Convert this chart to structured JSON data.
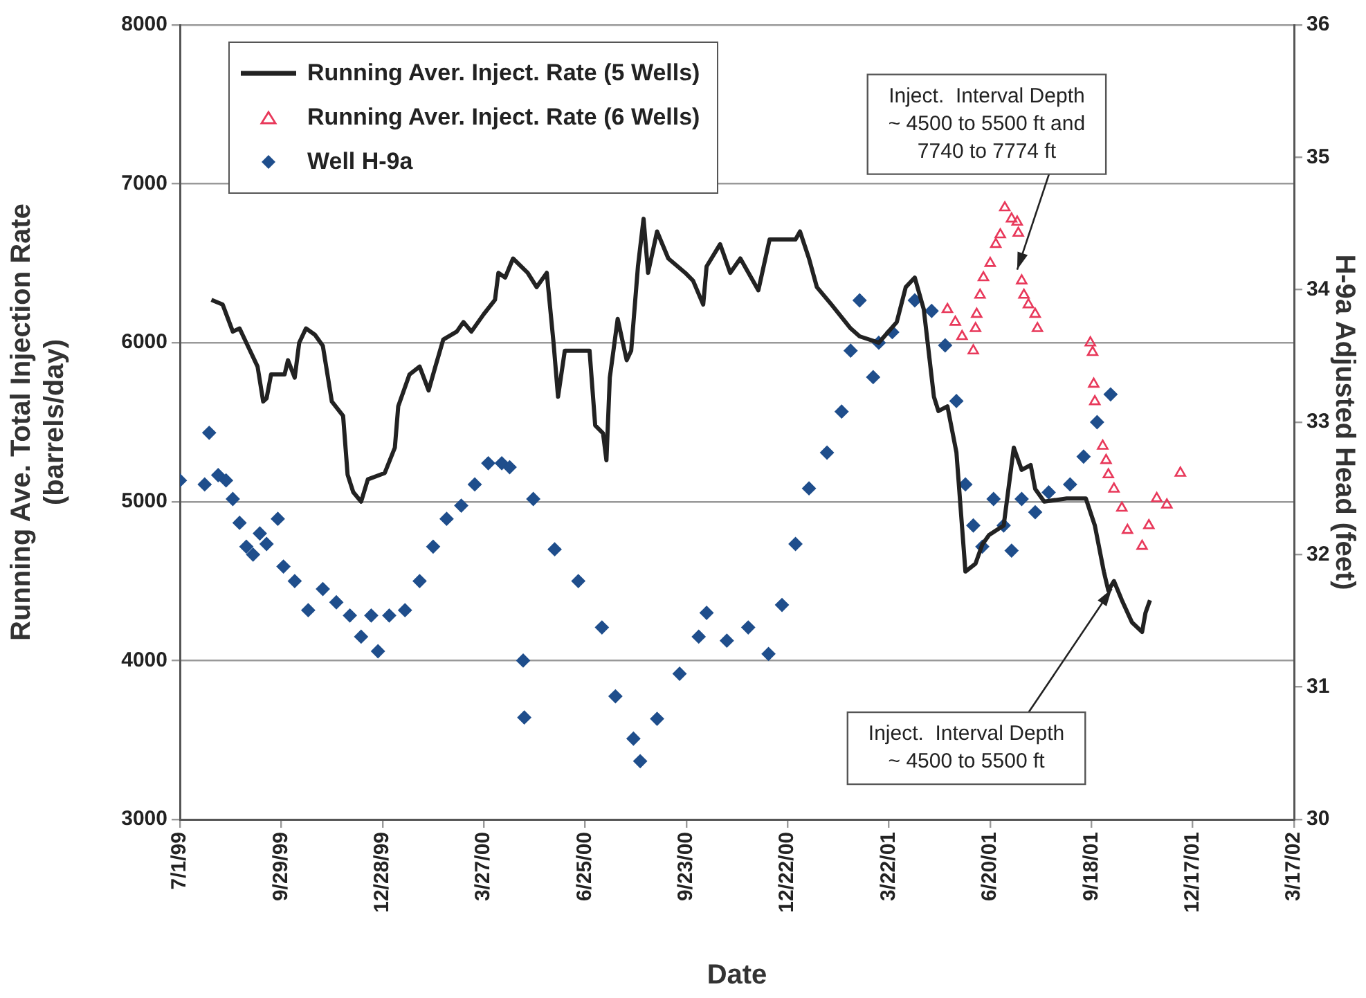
{
  "chart_data": {
    "type": "line",
    "xlabel": "Date",
    "ylabel": "Running Ave. Total Injection Rate\n(barrels/day)",
    "y2label": "H-9a Adjusted Head (feet)",
    "xlim": [
      "1999-07-01",
      "2002-03-17"
    ],
    "xticks": [
      {
        "value": "1999-07-01",
        "label": "7/1/99"
      },
      {
        "value": "1999-09-29",
        "label": "9/29/99"
      },
      {
        "value": "1999-12-28",
        "label": "12/28/99"
      },
      {
        "value": "2000-03-27",
        "label": "3/27/00"
      },
      {
        "value": "2000-06-25",
        "label": "6/25/00"
      },
      {
        "value": "2000-09-23",
        "label": "9/23/00"
      },
      {
        "value": "2000-12-22",
        "label": "12/22/00"
      },
      {
        "value": "2001-03-22",
        "label": "3/22/01"
      },
      {
        "value": "2001-06-20",
        "label": "6/20/01"
      },
      {
        "value": "2001-09-18",
        "label": "9/18/01"
      },
      {
        "value": "2001-12-17",
        "label": "12/17/01"
      },
      {
        "value": "2002-03-17",
        "label": "3/17/02"
      }
    ],
    "ylim": [
      3000,
      8000
    ],
    "yticks": [
      3000,
      4000,
      5000,
      6000,
      7000,
      8000
    ],
    "y2lim": [
      30,
      36
    ],
    "y2ticks": [
      30,
      31,
      32,
      33,
      34,
      35,
      36
    ],
    "grid": "y",
    "legend": "top left",
    "series": [
      {
        "name": "Running Aver. Inject. Rate (5 Wells)",
        "type": "line",
        "marker": "none",
        "color": "#222222",
        "x": [
          "1999-07-29",
          "1999-08-08",
          "1999-08-17",
          "1999-08-23",
          "1999-08-29",
          "1999-09-08",
          "1999-09-13",
          "1999-09-16",
          "1999-09-20",
          "1999-10-02",
          "1999-10-05",
          "1999-10-11",
          "1999-10-15",
          "1999-10-21",
          "1999-10-29",
          "1999-11-05",
          "1999-11-13",
          "1999-11-23",
          "1999-11-27",
          "1999-12-02",
          "1999-12-09",
          "1999-12-15",
          "1999-12-30",
          "2000-01-08",
          "2000-01-11",
          "2000-01-21",
          "2000-01-30",
          "2000-02-07",
          "2000-02-13",
          "2000-02-20",
          "2000-03-03",
          "2000-03-09",
          "2000-03-16",
          "2000-03-27",
          "2000-04-06",
          "2000-04-09",
          "2000-04-15",
          "2000-04-22",
          "2000-05-05",
          "2000-05-13",
          "2000-05-22",
          "2000-05-28",
          "2000-06-01",
          "2000-06-07",
          "2000-06-29",
          "2000-07-04",
          "2000-07-11",
          "2000-07-14",
          "2000-07-17",
          "2000-07-24",
          "2000-08-01",
          "2000-08-05",
          "2000-08-11",
          "2000-08-16",
          "2000-08-20",
          "2000-08-28",
          "2000-09-07",
          "2000-09-22",
          "2000-09-29",
          "2000-10-08",
          "2000-10-11",
          "2000-10-23",
          "2000-11-01",
          "2000-11-10",
          "2000-11-26",
          "2000-12-06",
          "2000-12-29",
          "2001-01-02",
          "2001-01-10",
          "2001-01-17",
          "2001-01-30",
          "2001-02-16",
          "2001-02-24",
          "2001-03-13",
          "2001-03-29",
          "2001-04-06",
          "2001-04-14",
          "2001-04-22",
          "2001-05-01",
          "2001-05-05",
          "2001-05-13",
          "2001-05-21",
          "2001-05-29",
          "2001-06-07",
          "2001-06-13",
          "2001-06-19",
          "2001-07-02",
          "2001-07-11",
          "2001-07-18",
          "2001-07-26",
          "2001-07-30",
          "2001-08-07",
          "2001-08-27",
          "2001-09-13",
          "2001-09-21",
          "2001-09-29",
          "2001-10-03",
          "2001-10-08",
          "2001-10-15",
          "2001-10-24",
          "2001-11-02",
          "2001-11-05",
          "2001-11-09"
        ],
        "values": [
          6270,
          6240,
          6070,
          6090,
          6000,
          5850,
          5630,
          5650,
          5800,
          5800,
          5890,
          5780,
          6000,
          6090,
          6050,
          5980,
          5630,
          5540,
          5170,
          5060,
          5000,
          5140,
          5180,
          5340,
          5600,
          5800,
          5850,
          5700,
          5850,
          6020,
          6070,
          6130,
          6070,
          6180,
          6270,
          6440,
          6410,
          6530,
          6440,
          6350,
          6440,
          6000,
          5660,
          5950,
          5950,
          5480,
          5430,
          5260,
          5780,
          6150,
          5890,
          5950,
          6480,
          6780,
          6440,
          6700,
          6530,
          6440,
          6390,
          6240,
          6480,
          6620,
          6440,
          6530,
          6330,
          6650,
          6650,
          6700,
          6530,
          6350,
          6240,
          6090,
          6040,
          6000,
          6130,
          6350,
          6410,
          6210,
          5660,
          5570,
          5600,
          5310,
          4560,
          4610,
          4730,
          4790,
          4850,
          5340,
          5200,
          5230,
          5080,
          5000,
          5020,
          5020,
          4850,
          4560,
          4440,
          4500,
          4380,
          4240,
          4180,
          4300,
          4380
        ]
      },
      {
        "name": "Running Aver. Inject. Rate (6 Wells)",
        "type": "scatter",
        "marker": "triangle",
        "color": "#e8385a",
        "x": [
          "2001-05-13",
          "2001-05-20",
          "2001-05-26",
          "2001-06-05",
          "2001-06-07",
          "2001-06-08",
          "2001-06-11",
          "2001-06-14",
          "2001-06-20",
          "2001-06-25",
          "2001-06-29",
          "2001-07-03",
          "2001-07-09",
          "2001-07-14",
          "2001-07-15",
          "2001-07-18",
          "2001-07-20",
          "2001-07-24",
          "2001-07-30",
          "2001-08-01",
          "2001-09-17",
          "2001-09-19",
          "2001-09-20",
          "2001-09-21",
          "2001-09-28",
          "2001-10-01",
          "2001-10-03",
          "2001-10-08",
          "2001-10-15",
          "2001-10-20",
          "2001-11-02",
          "2001-11-08",
          "2001-11-15",
          "2001-11-24",
          "2001-12-06"
        ],
        "values": [
          6210,
          6130,
          6040,
          5950,
          6090,
          6180,
          6300,
          6410,
          6500,
          6620,
          6680,
          6850,
          6780,
          6760,
          6690,
          6390,
          6300,
          6240,
          6180,
          6090,
          6000,
          5940,
          5740,
          5630,
          5350,
          5260,
          5170,
          5080,
          4960,
          4820,
          4720,
          4850,
          5020,
          4980,
          5180
        ]
      },
      {
        "name": "Well H-9a",
        "type": "scatter",
        "marker": "diamond",
        "color": "#1f4e8c",
        "axis": "y2",
        "x": [
          "1999-07-01",
          "1999-07-23",
          "1999-07-27",
          "1999-08-04",
          "1999-08-11",
          "1999-08-17",
          "1999-08-23",
          "1999-08-29",
          "1999-09-04",
          "1999-09-10",
          "1999-09-16",
          "1999-09-26",
          "1999-10-01",
          "1999-10-11",
          "1999-10-23",
          "1999-11-05",
          "1999-11-17",
          "1999-11-29",
          "1999-12-09",
          "1999-12-18",
          "1999-12-24",
          "2000-01-03",
          "2000-01-17",
          "2000-01-30",
          "2000-02-11",
          "2000-02-23",
          "2000-03-07",
          "2000-03-19",
          "2000-03-31",
          "2000-04-12",
          "2000-04-19",
          "2000-05-01",
          "2000-05-02",
          "2000-05-10",
          "2000-05-29",
          "2000-06-19",
          "2000-07-10",
          "2000-07-22",
          "2000-08-07",
          "2000-08-13",
          "2000-08-28",
          "2000-09-17",
          "2000-10-04",
          "2000-10-11",
          "2000-10-29",
          "2000-11-17",
          "2000-12-05",
          "2000-12-17",
          "2000-12-29",
          "2001-01-10",
          "2001-01-26",
          "2001-02-08",
          "2001-02-16",
          "2001-02-24",
          "2001-03-08",
          "2001-03-13",
          "2001-03-25",
          "2001-04-14",
          "2001-04-29",
          "2001-05-11",
          "2001-05-21",
          "2001-05-29",
          "2001-06-05",
          "2001-06-13",
          "2001-06-23",
          "2001-07-02",
          "2001-07-09",
          "2001-07-18",
          "2001-07-30",
          "2001-08-11",
          "2001-08-30",
          "2001-09-11",
          "2001-09-23",
          "2001-10-05"
        ],
        "values": [
          32.56,
          32.53,
          32.92,
          32.6,
          32.56,
          32.42,
          32.24,
          32.06,
          32.0,
          32.16,
          32.08,
          32.27,
          31.91,
          31.8,
          31.58,
          31.74,
          31.64,
          31.54,
          31.38,
          31.54,
          31.27,
          31.54,
          31.58,
          31.8,
          32.06,
          32.27,
          32.37,
          32.53,
          32.69,
          32.69,
          32.66,
          31.2,
          30.77,
          32.42,
          32.04,
          31.8,
          31.45,
          30.93,
          30.61,
          30.44,
          30.76,
          31.1,
          31.38,
          31.56,
          31.35,
          31.45,
          31.25,
          31.62,
          32.08,
          32.5,
          32.77,
          33.08,
          33.54,
          33.92,
          33.34,
          33.6,
          33.68,
          33.92,
          33.84,
          33.58,
          33.16,
          32.53,
          32.22,
          32.06,
          32.42,
          32.22,
          32.03,
          32.42,
          32.32,
          32.47,
          32.53,
          32.74,
          33.0,
          33.21
        ]
      }
    ],
    "annotations": [
      {
        "text": "Inject.  Interval Depth\n~ 4500 to 5500 ft and\n7740 to 7774 ft",
        "x": "2001-07-14",
        "y": 6460
      },
      {
        "text": "Inject.  Interval Depth\n~ 4500 to 5500 ft",
        "x": "2001-10-06",
        "y": 4450
      }
    ]
  }
}
